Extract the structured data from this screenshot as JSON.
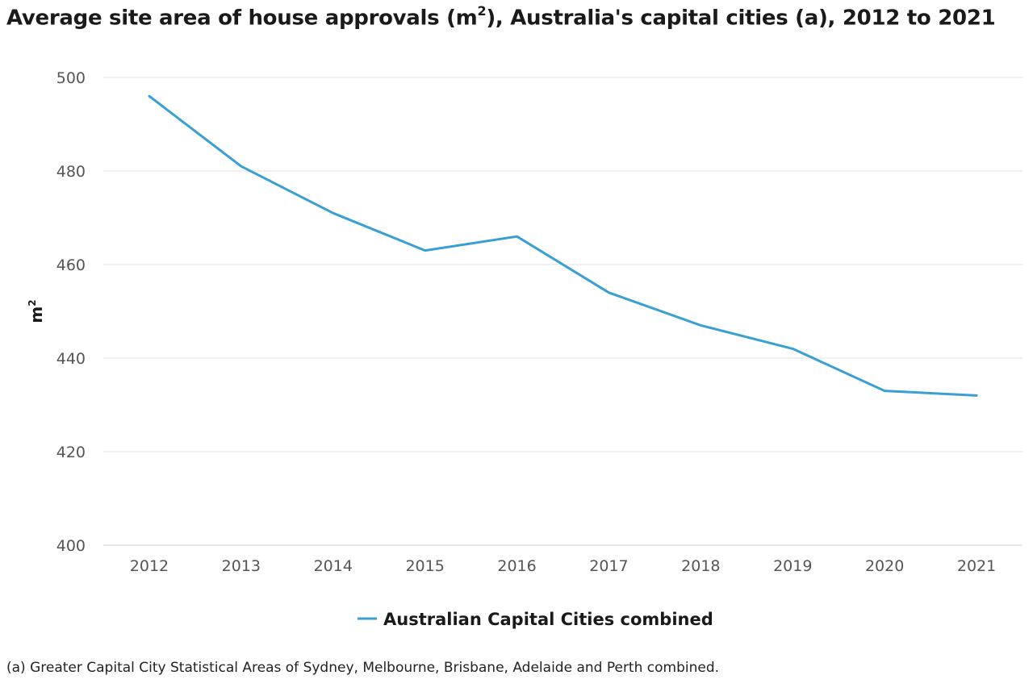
{
  "title": {
    "prefix": "Average site area of house approvals (m",
    "sup": "2",
    "suffix": "), Australia's capital cities (a), 2012 to 2021"
  },
  "footnote": "(a) Greater Capital City Statistical Areas of Sydney, Melbourne, Brisbane, Adelaide and Perth combined.",
  "chart_data": {
    "type": "line",
    "title": "Average site area of house approvals (m²), Australia's capital cities (a), 2012 to 2021",
    "xlabel": "",
    "ylabel": "m²",
    "categories": [
      "2012",
      "2013",
      "2014",
      "2015",
      "2016",
      "2017",
      "2018",
      "2019",
      "2020",
      "2021"
    ],
    "ylim": [
      400,
      500
    ],
    "yticks": [
      400,
      420,
      440,
      460,
      480,
      500
    ],
    "grid": true,
    "legend_position": "bottom-center",
    "series": [
      {
        "name": "Australian Capital Cities combined",
        "values": [
          496,
          481,
          471,
          463,
          466,
          454,
          447,
          442,
          433,
          432
        ],
        "color": "#3a9fd4"
      }
    ]
  },
  "colors": {
    "grid": "#e2e2e2",
    "axis": "#c8d3e0",
    "tick_text": "#555555"
  }
}
